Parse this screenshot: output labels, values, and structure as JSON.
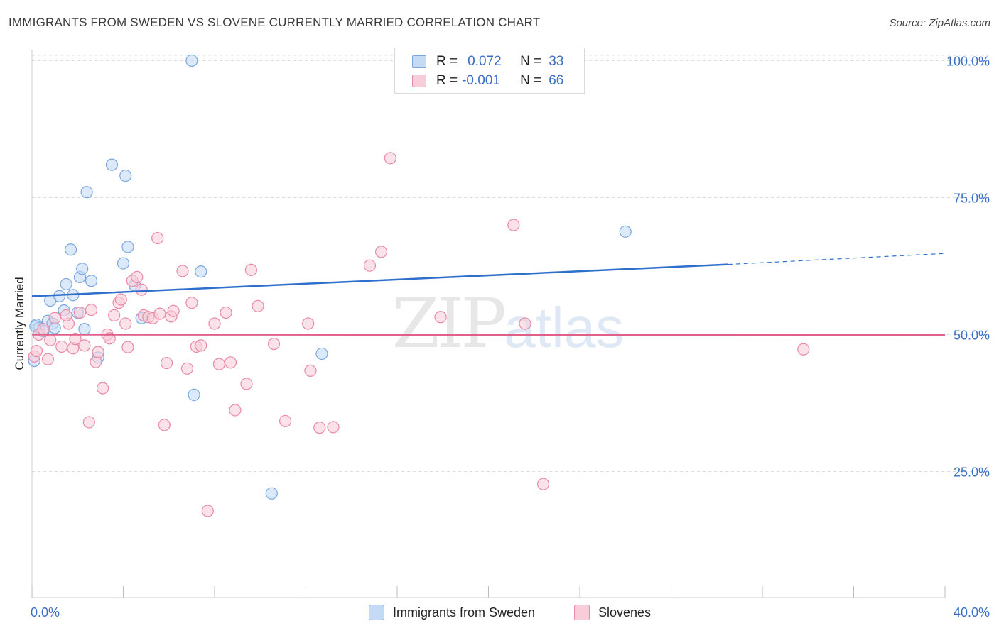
{
  "title": "IMMIGRANTS FROM SWEDEN VS SLOVENE CURRENTLY MARRIED CORRELATION CHART",
  "source": "Source: ZipAtlas.com",
  "watermark": {
    "zip": "ZIP",
    "atlas": "atlas"
  },
  "legend": {
    "rows": [
      {
        "r_label": "R =",
        "r_value": "0.072",
        "n_label": "N =",
        "n_value": "33",
        "color": "#a9c8f0"
      },
      {
        "r_label": "R =",
        "r_value": "-0.001",
        "n_label": "N =",
        "n_value": "66",
        "color": "#f5b7cb"
      }
    ]
  },
  "chart_data": {
    "type": "scatter",
    "title": "IMMIGRANTS FROM SWEDEN VS SLOVENE CURRENTLY MARRIED CORRELATION CHART",
    "xlabel": "",
    "ylabel": "Currently Married",
    "xlim": [
      0,
      40
    ],
    "ylim": [
      2,
      102
    ],
    "x_tick_labels": [
      "0.0%",
      "40.0%"
    ],
    "y_ticks": [
      25,
      50,
      75,
      100
    ],
    "y_tick_labels": [
      "25.0%",
      "50.0%",
      "75.0%",
      "100.0%"
    ],
    "grid": true,
    "legend_position": "top-center",
    "series": [
      {
        "name": "Immigrants from Sweden",
        "color": "#7aa7e0",
        "fill": "#c5daf5",
        "trend": {
          "x": [
            0,
            30.5
          ],
          "y": [
            57.0,
            62.8
          ],
          "dashed_to": [
            40,
            64.8
          ],
          "color": "#2f6fcc"
        },
        "points": [
          [
            0.1,
            45.2
          ],
          [
            0.2,
            51.8
          ],
          [
            0.3,
            51.2
          ],
          [
            0.5,
            50.6
          ],
          [
            0.7,
            52.5
          ],
          [
            0.8,
            56.2
          ],
          [
            0.9,
            52.0
          ],
          [
            1.0,
            51.2
          ],
          [
            1.2,
            57.0
          ],
          [
            1.4,
            54.4
          ],
          [
            1.5,
            59.2
          ],
          [
            1.7,
            65.5
          ],
          [
            1.8,
            57.2
          ],
          [
            2.0,
            54.0
          ],
          [
            2.1,
            60.5
          ],
          [
            2.2,
            62.0
          ],
          [
            2.3,
            51.0
          ],
          [
            2.4,
            76.0
          ],
          [
            2.6,
            59.8
          ],
          [
            2.9,
            45.8
          ],
          [
            3.5,
            81.0
          ],
          [
            4.0,
            63.0
          ],
          [
            4.1,
            79.0
          ],
          [
            4.2,
            66.0
          ],
          [
            4.5,
            59.0
          ],
          [
            4.8,
            53.0
          ],
          [
            7.0,
            100.0
          ],
          [
            7.1,
            39.0
          ],
          [
            7.4,
            61.5
          ],
          [
            10.5,
            21.0
          ],
          [
            12.7,
            46.5
          ],
          [
            26.0,
            68.8
          ],
          [
            0.15,
            51.5
          ]
        ]
      },
      {
        "name": "Slovenes",
        "color": "#e88aa8",
        "fill": "#f8cdd9",
        "trend": {
          "x": [
            0,
            40
          ],
          "y": [
            50.0,
            49.9
          ],
          "color": "#e0608a"
        },
        "points": [
          [
            0.1,
            46.0
          ],
          [
            0.3,
            50.0
          ],
          [
            0.5,
            51.0
          ],
          [
            0.7,
            45.5
          ],
          [
            0.8,
            49.0
          ],
          [
            1.0,
            53.0
          ],
          [
            1.3,
            47.8
          ],
          [
            1.6,
            52.0
          ],
          [
            1.8,
            47.5
          ],
          [
            1.9,
            49.2
          ],
          [
            2.1,
            54.0
          ],
          [
            2.3,
            48.0
          ],
          [
            2.5,
            34.0
          ],
          [
            2.6,
            54.5
          ],
          [
            2.8,
            45.0
          ],
          [
            2.9,
            46.8
          ],
          [
            3.1,
            40.2
          ],
          [
            3.3,
            50.0
          ],
          [
            3.4,
            49.3
          ],
          [
            3.6,
            53.5
          ],
          [
            3.8,
            55.8
          ],
          [
            3.9,
            56.4
          ],
          [
            4.1,
            52.0
          ],
          [
            4.2,
            47.7
          ],
          [
            4.4,
            59.8
          ],
          [
            4.6,
            60.5
          ],
          [
            4.8,
            58.2
          ],
          [
            4.9,
            53.5
          ],
          [
            5.1,
            53.2
          ],
          [
            5.3,
            53.0
          ],
          [
            5.5,
            67.6
          ],
          [
            5.6,
            53.8
          ],
          [
            5.8,
            33.5
          ],
          [
            5.9,
            44.8
          ],
          [
            6.1,
            53.3
          ],
          [
            6.2,
            54.3
          ],
          [
            6.6,
            61.6
          ],
          [
            6.8,
            43.8
          ],
          [
            7.0,
            55.8
          ],
          [
            7.2,
            47.8
          ],
          [
            7.4,
            48.0
          ],
          [
            7.7,
            17.8
          ],
          [
            8.0,
            52.0
          ],
          [
            8.2,
            44.6
          ],
          [
            8.5,
            54.0
          ],
          [
            8.7,
            44.9
          ],
          [
            8.9,
            36.2
          ],
          [
            9.4,
            41.0
          ],
          [
            9.6,
            61.8
          ],
          [
            9.9,
            55.2
          ],
          [
            10.6,
            48.3
          ],
          [
            11.1,
            34.2
          ],
          [
            12.1,
            52.0
          ],
          [
            12.2,
            43.4
          ],
          [
            12.6,
            33.0
          ],
          [
            13.2,
            33.1
          ],
          [
            14.8,
            62.6
          ],
          [
            15.3,
            65.1
          ],
          [
            15.7,
            82.2
          ],
          [
            17.9,
            53.2
          ],
          [
            21.1,
            70.0
          ],
          [
            21.6,
            52.0
          ],
          [
            22.4,
            22.7
          ],
          [
            33.8,
            47.3
          ],
          [
            0.2,
            47.0
          ],
          [
            1.5,
            53.5
          ]
        ]
      }
    ]
  },
  "bottom_legend": [
    {
      "label": "Immigrants from Sweden",
      "color": "#c5daf5",
      "border": "#7aa7e0"
    },
    {
      "label": "Slovenes",
      "color": "#f8cdd9",
      "border": "#e88aa8"
    }
  ]
}
